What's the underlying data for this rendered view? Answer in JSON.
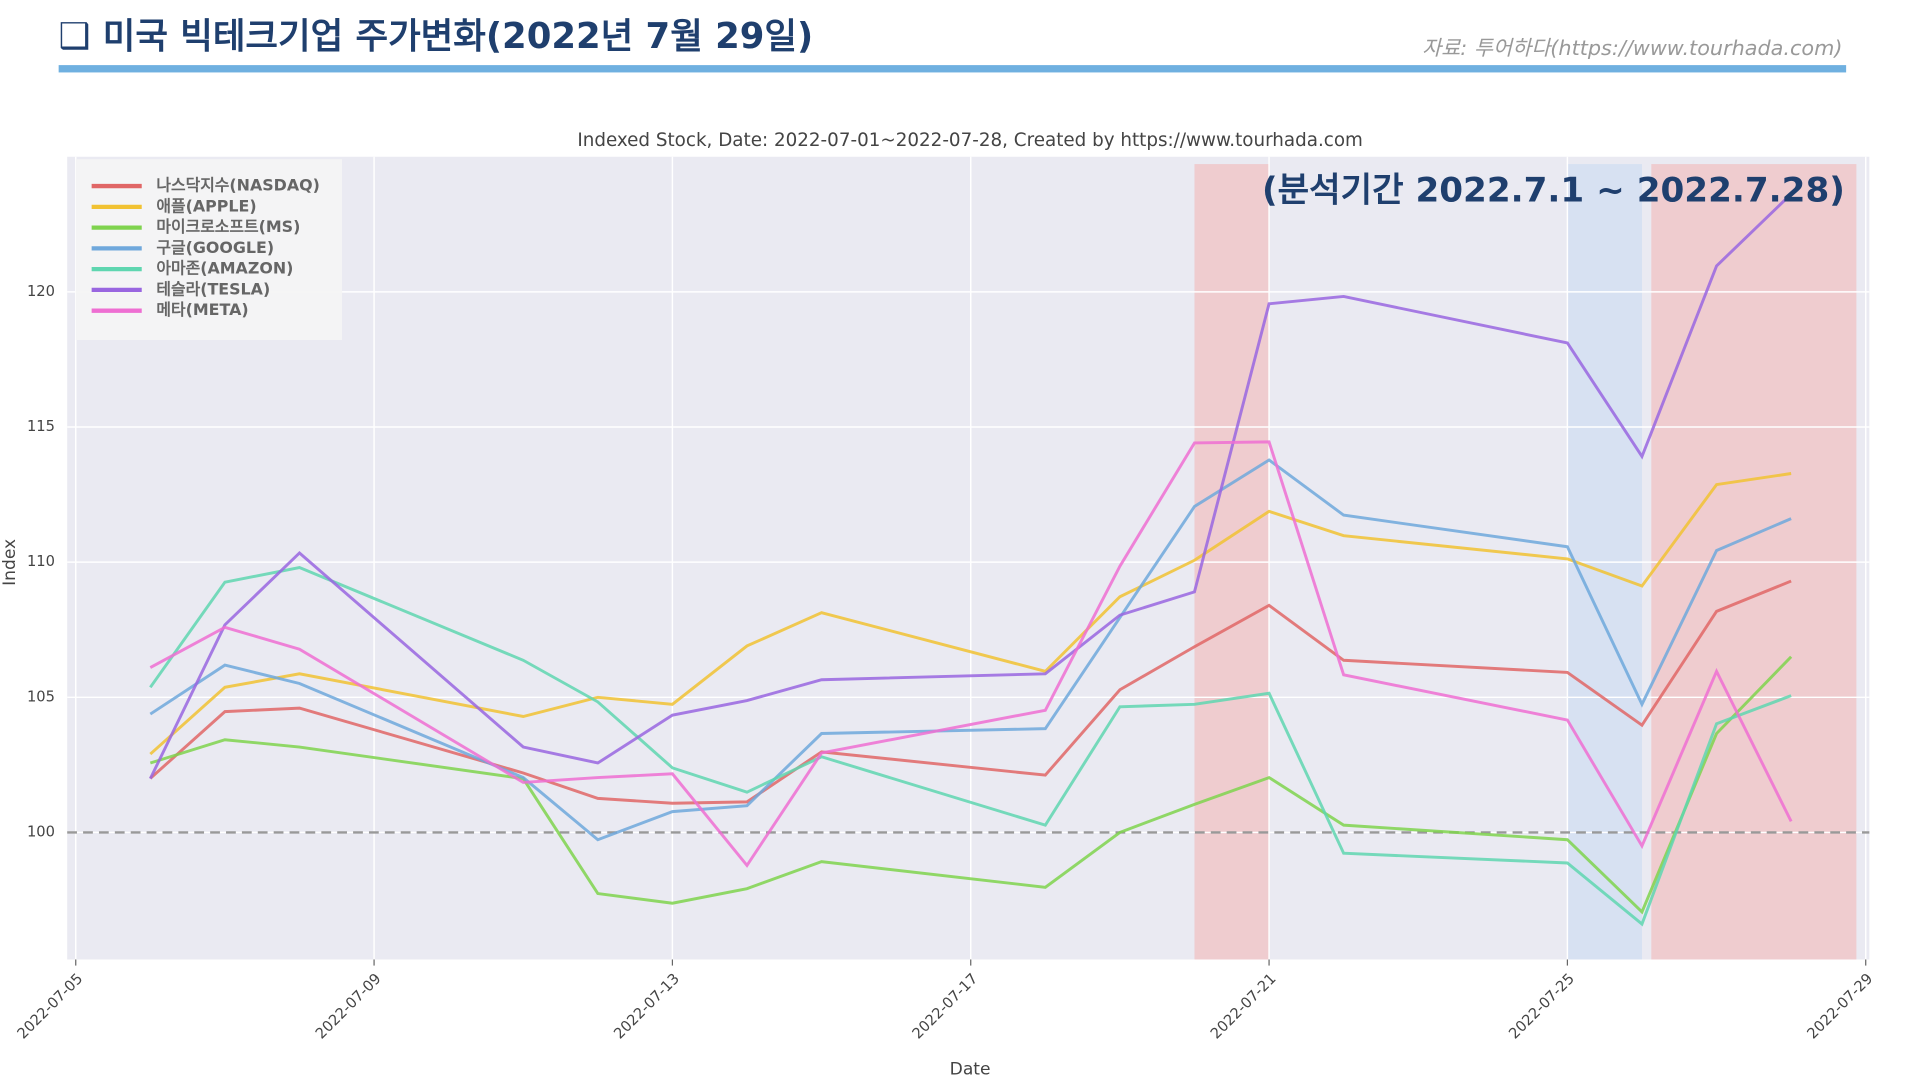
{
  "header": {
    "title": "❑ 미국 빅테크기업 주가변화(2022년 7월 29일)",
    "source": "자료: 투어하다(https://www.tourhada.com)"
  },
  "chart_data": {
    "type": "line",
    "title": "Indexed Stock,  Date: 2022-07-01~2022-07-28, Created by https://www.tourhada.com",
    "annotation": "(분석기간 2022.7.1  ~ 2022.7.28)",
    "xlabel": "Date",
    "ylabel": "Index",
    "x": [
      "2022-07-06",
      "2022-07-07",
      "2022-07-08",
      "2022-07-11",
      "2022-07-12",
      "2022-07-13",
      "2022-07-14",
      "2022-07-15",
      "2022-07-18",
      "2022-07-19",
      "2022-07-20",
      "2022-07-21",
      "2022-07-22",
      "2022-07-25",
      "2022-07-26",
      "2022-07-27",
      "2022-07-28"
    ],
    "series": [
      {
        "name": "나스닥지수(NASDAQ)",
        "color": "#e06666",
        "values": [
          102.0,
          104.47,
          104.6,
          102.2,
          101.26,
          101.08,
          101.13,
          102.98,
          102.12,
          105.28,
          106.87,
          108.4,
          106.37,
          105.92,
          103.97,
          108.18,
          109.3
        ]
      },
      {
        "name": "애플(APPLE)",
        "color": "#f1c232",
        "values": [
          102.9,
          105.37,
          105.87,
          104.29,
          105.0,
          104.74,
          106.9,
          108.13,
          105.96,
          108.72,
          110.07,
          111.88,
          110.98,
          110.12,
          109.12,
          112.87,
          113.28
        ]
      },
      {
        "name": "마이크로소프트(MS)",
        "color": "#7fd34e",
        "values": [
          102.57,
          103.43,
          103.16,
          101.99,
          97.74,
          97.38,
          97.92,
          98.92,
          97.97,
          100.0,
          101.04,
          102.03,
          100.27,
          99.73,
          97.06,
          103.66,
          106.5
        ]
      },
      {
        "name": "구글(GOOGLE)",
        "color": "#6fa8dc",
        "values": [
          104.38,
          106.19,
          105.51,
          102.03,
          99.73,
          100.77,
          100.99,
          103.66,
          103.84,
          107.95,
          112.06,
          113.78,
          111.74,
          110.57,
          104.74,
          110.43,
          111.61
        ]
      },
      {
        "name": "아마존(AMAZON)",
        "color": "#5fd6b0",
        "values": [
          105.37,
          109.26,
          109.8,
          106.37,
          104.83,
          102.39,
          101.49,
          102.8,
          100.27,
          104.65,
          104.74,
          105.15,
          99.23,
          98.87,
          96.61,
          104.02,
          105.06
        ]
      },
      {
        "name": "테슬라(TESLA)",
        "color": "#9966e0",
        "values": [
          101.99,
          107.68,
          110.34,
          103.16,
          102.57,
          104.34,
          104.88,
          105.65,
          105.87,
          108.04,
          108.9,
          119.56,
          119.83,
          118.11,
          113.91,
          120.96,
          123.62
        ]
      },
      {
        "name": "메타(META)",
        "color": "#ee6ed2",
        "values": [
          106.1,
          107.59,
          106.78,
          101.85,
          102.03,
          102.17,
          98.78,
          102.94,
          104.52,
          109.85,
          114.41,
          114.45,
          105.83,
          104.16,
          99.5,
          105.96,
          100.41
        ]
      }
    ],
    "xlim": [
      "2022-07-04 21:15",
      "2022-07-29 01:10"
    ],
    "xticks": [
      "2022-07-05",
      "2022-07-09",
      "2022-07-13",
      "2022-07-17",
      "2022-07-21",
      "2022-07-25",
      "2022-07-29"
    ],
    "ylim": [
      95.3,
      125
    ],
    "yticks": [
      100,
      105,
      110,
      115,
      120
    ],
    "hline": 100,
    "spans": [
      {
        "start": "2022-07-20",
        "end": "2022-07-21",
        "color": "#f2b8b8"
      },
      {
        "start": "2022-07-25",
        "end": "2022-07-26",
        "color": "#c9daf2"
      },
      {
        "start": "2022-07-26 03:00",
        "end": "2022-07-28 21:00",
        "color": "#f2b8b8"
      }
    ],
    "grid": true,
    "legend": "upper left"
  }
}
